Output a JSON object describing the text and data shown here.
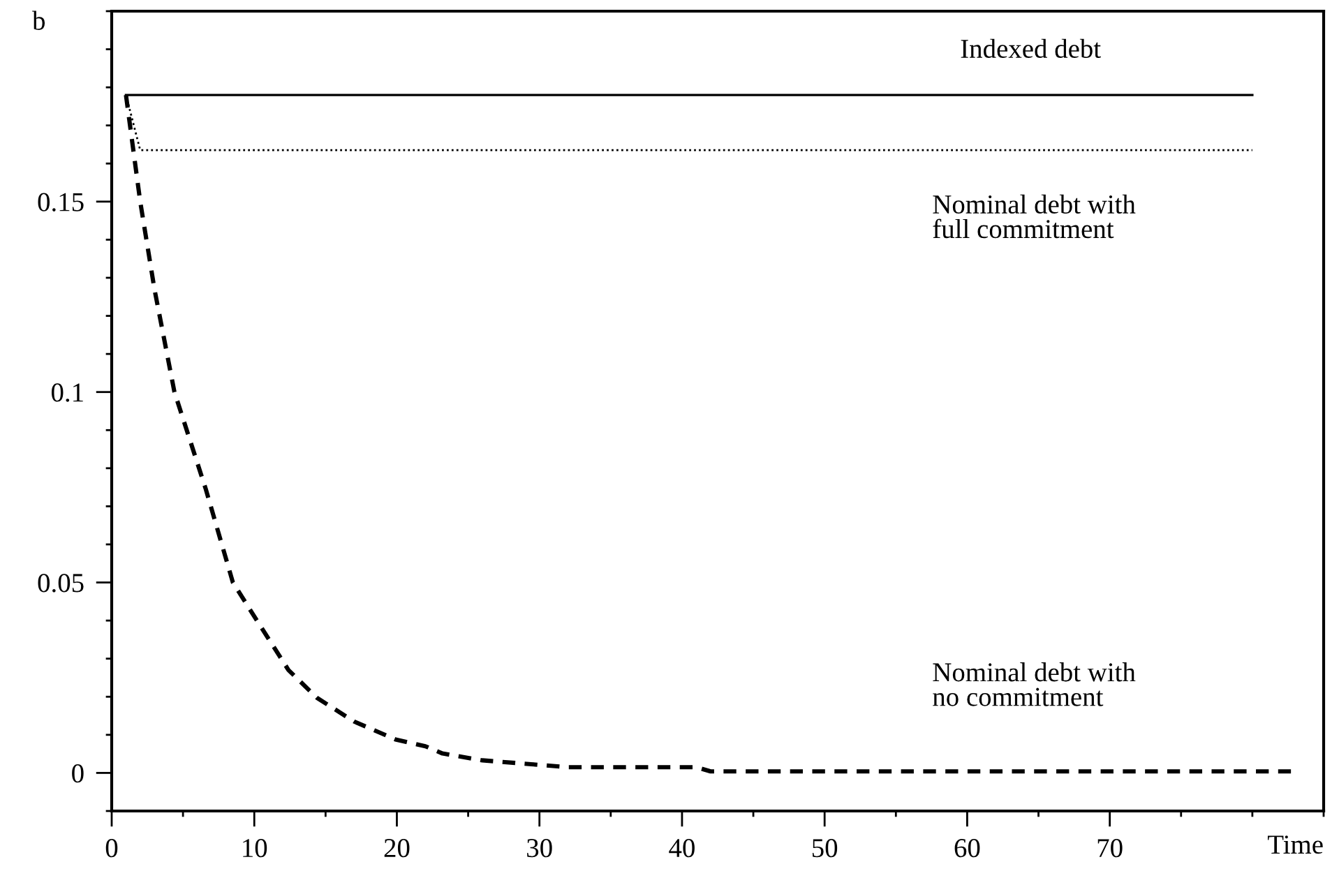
{
  "chart_data": {
    "type": "line",
    "ylabel": "b",
    "xlabel": "Time",
    "xlim": [
      0,
      85
    ],
    "ylim": [
      -0.01,
      0.2
    ],
    "xticks": [
      0,
      {
        "value": 5,
        "label": null
      },
      10,
      {
        "value": 15,
        "label": null
      },
      20,
      {
        "value": 25,
        "label": null
      },
      30,
      {
        "value": 35,
        "label": null
      },
      40,
      {
        "value": 45,
        "label": null
      },
      50,
      {
        "value": 55,
        "label": null
      },
      60,
      {
        "value": 65,
        "label": null
      },
      70,
      {
        "value": 75,
        "label": null
      },
      {
        "value": 80,
        "label": null
      },
      {
        "value": 85,
        "label": null
      }
    ],
    "yticks": [
      {
        "value": -0.01,
        "label": null
      },
      0,
      {
        "value": 0.01,
        "label": null
      },
      {
        "value": 0.02,
        "label": null
      },
      {
        "value": 0.03,
        "label": null
      },
      {
        "value": 0.04,
        "label": null
      },
      0.05,
      {
        "value": 0.06,
        "label": null
      },
      {
        "value": 0.07,
        "label": null
      },
      {
        "value": 0.08,
        "label": null
      },
      {
        "value": 0.09,
        "label": null
      },
      0.1,
      {
        "value": 0.11,
        "label": null
      },
      {
        "value": 0.12,
        "label": null
      },
      {
        "value": 0.13,
        "label": null
      },
      {
        "value": 0.14,
        "label": null
      },
      0.15,
      {
        "value": 0.16,
        "label": null
      },
      {
        "value": 0.17,
        "label": null
      },
      {
        "value": 0.18,
        "label": null
      },
      {
        "value": 0.19,
        "label": null
      },
      {
        "value": 0.2,
        "label": null
      }
    ],
    "grid": false,
    "legend": false,
    "marker": "none",
    "series": [
      {
        "name": "Indexed debt",
        "color": "#000000",
        "line_style": "solid",
        "x": [
          1,
          80
        ],
        "values": [
          0.178,
          0.178
        ]
      },
      {
        "name": "Nominal debt with\nfull commitment",
        "color": "#000000",
        "line_style": "dotted",
        "x": [
          1,
          2,
          80
        ],
        "values": [
          0.178,
          0.1635,
          0.1635
        ]
      },
      {
        "name": "Nominal debt with\nno commitment",
        "color": "#000000",
        "line_style": "dashed",
        "x": [
          1,
          2,
          3,
          4.4,
          6.6,
          8.5,
          10.1,
          12.4,
          14.4,
          17,
          19.9,
          22,
          23.2,
          26,
          29.7,
          32,
          41,
          42,
          83
        ],
        "values": [
          0.178,
          0.15,
          0.127,
          0.1,
          0.0745,
          0.05,
          0.0405,
          0.027,
          0.0197,
          0.0135,
          0.0088,
          0.007,
          0.0051,
          0.0033,
          0.0022,
          0.0015,
          0.0015,
          0.0004,
          0.0004
        ]
      }
    ]
  }
}
